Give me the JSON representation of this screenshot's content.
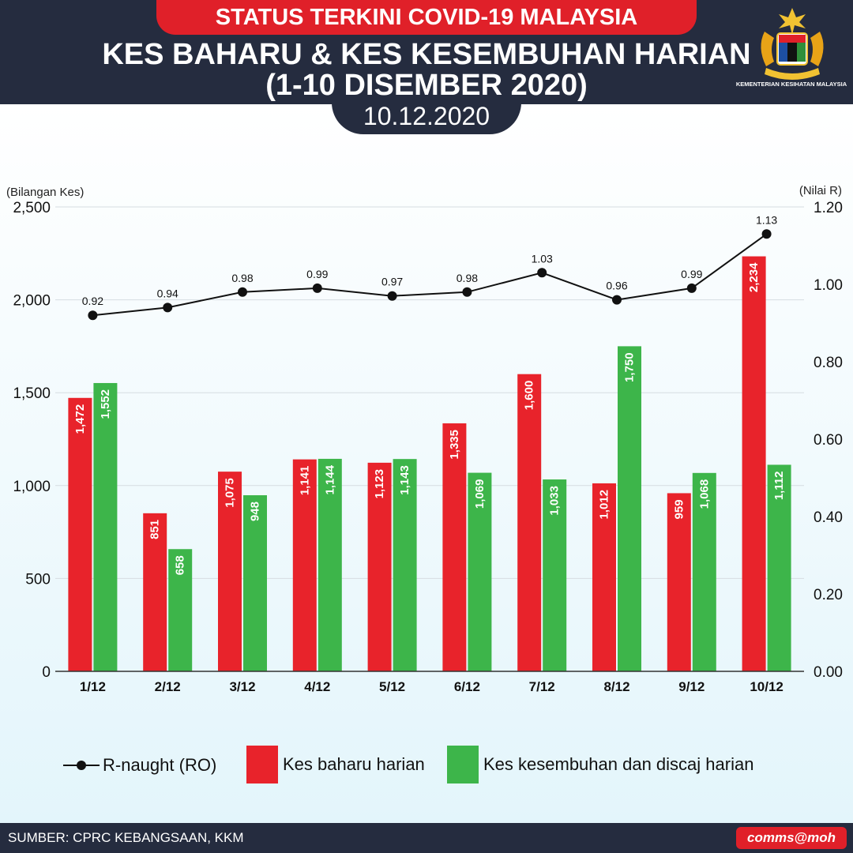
{
  "header": {
    "status": "STATUS TERKINI COVID-19 MALAYSIA",
    "title_line1": "KES BAHARU & KES KESEMBUHAN HARIAN",
    "title_line2": "(1-10 DISEMBER 2020)",
    "date": "10.12.2020",
    "ministry": "KEMENTERIAN KESIHATAN MALAYSIA"
  },
  "footer": {
    "source": "SUMBER: CPRC KEBANGSAAN, KKM",
    "brand": "comms@moh"
  },
  "colors": {
    "new": "#e8232b",
    "recovered": "#3db54a",
    "line": "#111111",
    "navy": "#252c3f"
  },
  "chart_data": {
    "type": "bar",
    "categories": [
      "1/12",
      "2/12",
      "3/12",
      "4/12",
      "5/12",
      "6/12",
      "7/12",
      "8/12",
      "9/12",
      "10/12"
    ],
    "series": [
      {
        "name": "Kes baharu harian",
        "values": [
          1472,
          851,
          1075,
          1141,
          1123,
          1335,
          1600,
          1012,
          959,
          2234
        ],
        "labels": [
          "1,472",
          "851",
          "1,075",
          "1,141",
          "1,123",
          "1,335",
          "1,600",
          "1,012",
          "959",
          "2,234"
        ]
      },
      {
        "name": "Kes kesembuhan dan discaj harian",
        "values": [
          1552,
          658,
          948,
          1144,
          1143,
          1069,
          1033,
          1750,
          1068,
          1112
        ],
        "labels": [
          "1,552",
          "658",
          "948",
          "1,144",
          "1,143",
          "1,069",
          "1,033",
          "1,750",
          "1,068",
          "1,112"
        ]
      }
    ],
    "line": {
      "name": "R-naught (RO)",
      "values": [
        0.92,
        0.94,
        0.98,
        0.99,
        0.97,
        0.98,
        1.03,
        0.96,
        0.99,
        1.13
      ],
      "labels": [
        "0.92",
        "0.94",
        "0.98",
        "0.99",
        "0.97",
        "0.98",
        "1.03",
        "0.96",
        "0.99",
        "1.13"
      ]
    },
    "ylabel": "(Bilangan Kes)",
    "y2label": "(Nilai R)",
    "ylim": [
      0,
      2500
    ],
    "y2lim": [
      0,
      1.2
    ],
    "yticks": [
      "0",
      "500",
      "1,000",
      "1,500",
      "2,000",
      "2,500"
    ],
    "y2ticks": [
      "0.00",
      "0.20",
      "0.40",
      "0.60",
      "0.80",
      "1.00",
      "1.20"
    ],
    "grid": true,
    "legend_position": "bottom"
  }
}
